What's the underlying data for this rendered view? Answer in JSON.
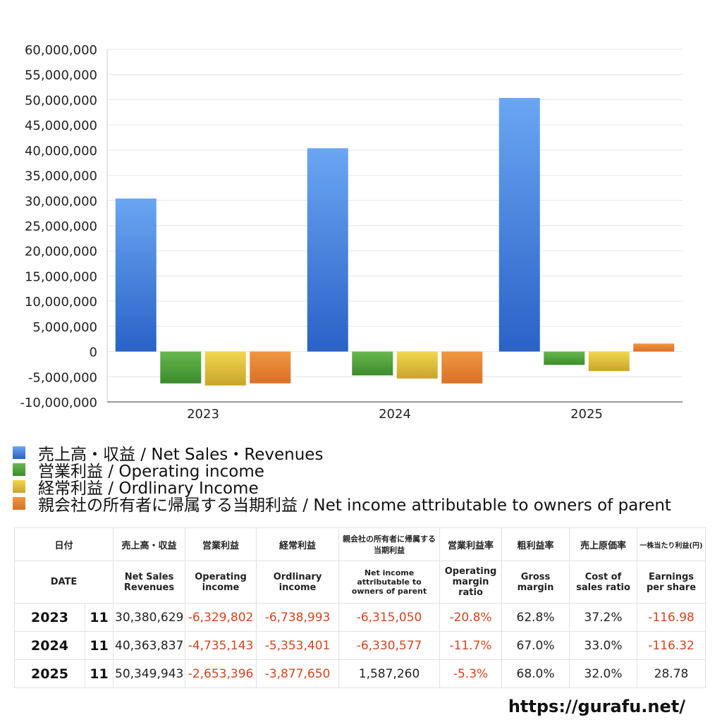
{
  "chart_data": {
    "type": "bar",
    "categories": [
      "2023",
      "2024",
      "2025"
    ],
    "ylim": [
      -10000000,
      60000000
    ],
    "yticks": [
      60000000,
      55000000,
      50000000,
      45000000,
      40000000,
      35000000,
      30000000,
      25000000,
      20000000,
      15000000,
      10000000,
      5000000,
      0,
      -5000000,
      -10000000
    ],
    "ytick_labels": [
      "60,000,000",
      "55,000,000",
      "50,000,000",
      "45,000,000",
      "40,000,000",
      "35,000,000",
      "30,000,000",
      "25,000,000",
      "20,000,000",
      "15,000,000",
      "10,000,000",
      "5,000,000",
      "0",
      "-5,000,000",
      "-10,000,000"
    ],
    "series": [
      {
        "name": "売上高・収益 / Net Sales・Revenues",
        "values": [
          30380629,
          40363837,
          50349943
        ],
        "color_top": "#6aa6f2",
        "color_bottom": "#2a62c7"
      },
      {
        "name": "営業利益 / Operating income",
        "values": [
          -6329802,
          -4735143,
          -2653396
        ],
        "color_top": "#66b84e",
        "color_bottom": "#3d8b2d"
      },
      {
        "name": "経常利益 / Ordlinary Income",
        "values": [
          -6738993,
          -5353401,
          -3877650
        ],
        "color_top": "#f2d74f",
        "color_bottom": "#c9a42a"
      },
      {
        "name": "親会社の所有者に帰属する当期利益 / Net income attributable to owners of parent",
        "values": [
          -6315050,
          -6330577,
          1587260
        ],
        "color_top": "#f0973f",
        "color_bottom": "#d9702a"
      }
    ]
  },
  "table": {
    "headers_jp": [
      "日付",
      "売上高・収益",
      "営業利益",
      "経常利益",
      "親会社の所有者に帰属する当期利益",
      "営業利益率",
      "粗利益率",
      "売上原価率",
      "一株当たり利益(円)"
    ],
    "headers_en": [
      "DATE",
      "Net Sales Revenues",
      "Operating income",
      "Ordlinary income",
      "Net income attributable to owners of parent",
      "Operating margin ratio",
      "Gross margin",
      "Cost of sales ratio",
      "Earnings per share"
    ],
    "rows": [
      {
        "year": "2023",
        "month": "11",
        "sales": "30,380,629",
        "op": "-6,329,802",
        "ord": "-6,738,993",
        "net": "-6,315,050",
        "opm": "-20.8%",
        "gm": "62.8%",
        "cos": "37.2%",
        "eps": "-116.98"
      },
      {
        "year": "2024",
        "month": "11",
        "sales": "40,363,837",
        "op": "-4,735,143",
        "ord": "-5,353,401",
        "net": "-6,330,577",
        "opm": "-11.7%",
        "gm": "67.0%",
        "cos": "33.0%",
        "eps": "-116.32"
      },
      {
        "year": "2025",
        "month": "11",
        "sales": "50,349,943",
        "op": "-2,653,396",
        "ord": "-3,877,650",
        "net": "1,587,260",
        "opm": "-5.3%",
        "gm": "68.0%",
        "cos": "32.0%",
        "eps": "28.78"
      }
    ]
  },
  "footer": {
    "url": "https://gurafu.net/"
  },
  "colors": {
    "negative": "#d4451f",
    "grid": "#e6e6e6",
    "axis": "#333333"
  }
}
